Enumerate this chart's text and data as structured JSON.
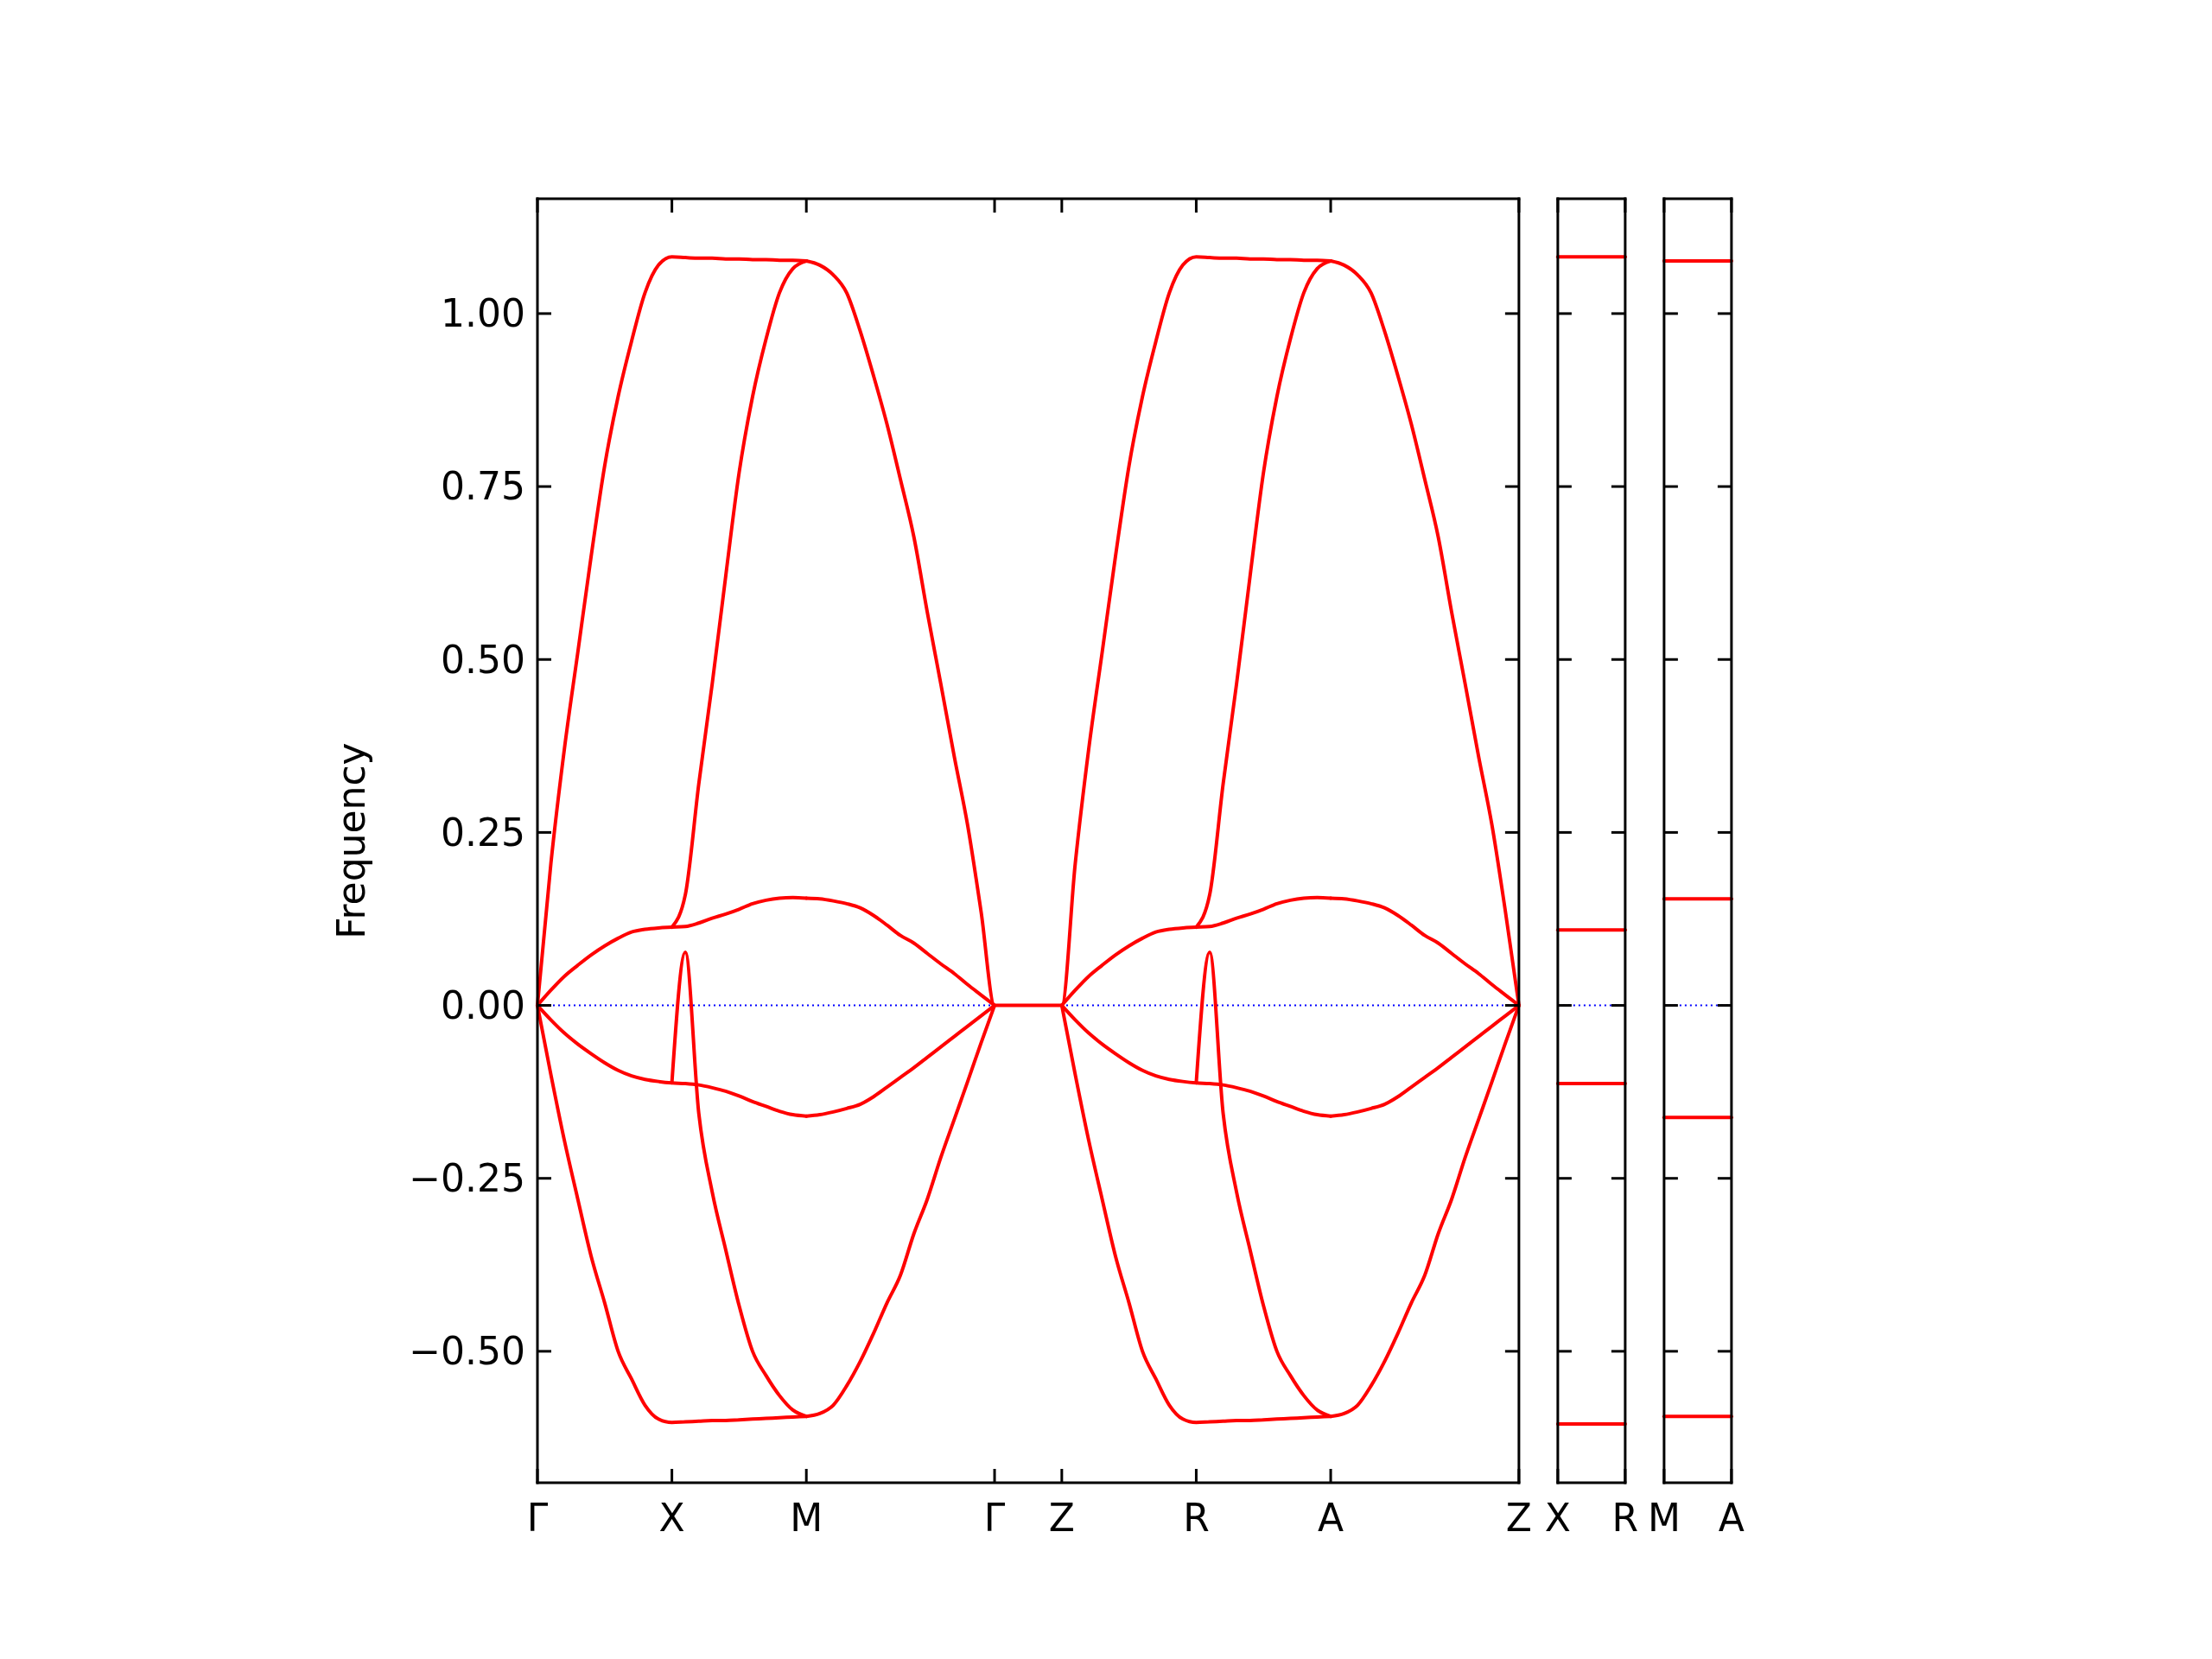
{
  "chart_data": [
    {
      "type": "line",
      "ylabel": "Frequency",
      "ylim": [
        -0.69,
        1.166
      ],
      "categories": [
        "Γ",
        null,
        null,
        null,
        null,
        null,
        null,
        null,
        null,
        null,
        "X",
        null,
        null,
        null,
        null,
        null,
        null,
        null,
        null,
        null,
        "M",
        null,
        null,
        null,
        null,
        null,
        null,
        null,
        null,
        null,
        null,
        null,
        null,
        null,
        "Γ",
        null,
        null,
        null,
        null,
        "Z",
        null,
        null,
        null,
        null,
        null,
        null,
        null,
        null,
        null,
        "R",
        null,
        null,
        null,
        null,
        null,
        null,
        null,
        null,
        null,
        "A",
        null,
        null,
        null,
        null,
        null,
        null,
        null,
        null,
        null,
        null,
        null,
        null,
        null,
        "Z"
      ],
      "yticks": [
        {
          "value": -0.5,
          "label": "−0.50"
        },
        {
          "value": -0.25,
          "label": "−0.25"
        },
        {
          "value": 0,
          "label": "0.00"
        },
        {
          "value": 0.25,
          "label": "0.25"
        },
        {
          "value": 0.5,
          "label": "0.50"
        },
        {
          "value": 0.75,
          "label": "0.75"
        },
        {
          "value": 1.0,
          "label": "1.00"
        }
      ],
      "ref_lines": [
        {
          "axis": "y",
          "value": 0,
          "color": "#0000ff",
          "line_style": "dotted"
        }
      ],
      "series": [
        {
          "color": "#ff0000",
          "values": [
            0,
            0.205,
            0.37,
            0.51,
            0.65,
            0.78,
            0.88,
            0.96,
            1.03,
            1.07,
            1.082,
            1.081,
            1.08,
            1.08,
            1.079,
            1.079,
            1.078,
            1.078,
            1.077,
            1.077,
            1.076,
            null,
            null,
            null,
            null,
            null,
            null,
            null,
            null,
            null,
            null,
            null,
            null,
            null,
            null,
            null,
            null,
            null,
            null,
            null,
            null,
            null,
            null,
            null,
            null,
            null,
            null,
            null,
            null,
            null,
            null,
            null,
            null,
            null,
            null,
            null,
            null,
            null,
            null,
            null,
            null,
            null,
            null,
            null,
            null,
            null,
            null,
            null,
            null,
            null,
            null,
            null,
            null,
            null
          ]
        },
        {
          "color": "#ff0000",
          "values": [
            null,
            null,
            null,
            null,
            null,
            null,
            null,
            null,
            null,
            null,
            null,
            null,
            null,
            null,
            null,
            null,
            null,
            null,
            null,
            null,
            1.076,
            1.07,
            1.056,
            1.03,
            0.975,
            0.91,
            0.84,
            0.76,
            0.677,
            0.568,
            0.465,
            0.36,
            0.26,
            0.135,
            0,
            0,
            0,
            0,
            0,
            0,
            0.205,
            0.37,
            0.51,
            0.65,
            0.78,
            0.88,
            0.96,
            1.03,
            1.07,
            1.082,
            1.081,
            1.08,
            1.08,
            1.079,
            1.079,
            1.078,
            1.078,
            1.077,
            1.077,
            1.076,
            null,
            null,
            null,
            null,
            null,
            null,
            null,
            null,
            null,
            null,
            null,
            null,
            null,
            null
          ]
        },
        {
          "color": "#ff0000",
          "values": [
            null,
            null,
            null,
            null,
            null,
            null,
            null,
            null,
            null,
            null,
            null,
            null,
            null,
            null,
            null,
            null,
            null,
            null,
            null,
            null,
            null,
            null,
            null,
            null,
            null,
            null,
            null,
            null,
            null,
            null,
            null,
            null,
            null,
            null,
            null,
            null,
            null,
            null,
            null,
            null,
            null,
            null,
            null,
            null,
            null,
            null,
            null,
            null,
            null,
            null,
            null,
            null,
            null,
            null,
            null,
            null,
            null,
            null,
            null,
            1.076,
            1.07,
            1.056,
            1.03,
            0.975,
            0.91,
            0.84,
            0.76,
            0.677,
            0.568,
            0.465,
            0.36,
            0.26,
            0.135,
            0
          ]
        },
        {
          "color": "#ff0000",
          "values": [
            null,
            null,
            null,
            null,
            null,
            null,
            null,
            null,
            null,
            null,
            0.113,
            0.16,
            0.32,
            0.465,
            0.62,
            0.77,
            0.88,
            0.963,
            1.03,
            1.065,
            1.076,
            null,
            null,
            null,
            null,
            null,
            null,
            null,
            null,
            null,
            null,
            null,
            null,
            null,
            null,
            null,
            null,
            null,
            null,
            null,
            null,
            null,
            null,
            null,
            null,
            null,
            null,
            null,
            null,
            null,
            null,
            null,
            null,
            null,
            null,
            null,
            null,
            null,
            null,
            null,
            null,
            null,
            null,
            null,
            null,
            null,
            null,
            null,
            null,
            null,
            null,
            null,
            null,
            null
          ]
        },
        {
          "color": "#ff0000",
          "values": [
            null,
            null,
            null,
            null,
            null,
            null,
            null,
            null,
            null,
            null,
            null,
            null,
            null,
            null,
            null,
            null,
            null,
            null,
            null,
            null,
            null,
            null,
            null,
            null,
            null,
            null,
            null,
            null,
            null,
            null,
            null,
            null,
            null,
            null,
            null,
            null,
            null,
            null,
            null,
            null,
            null,
            null,
            null,
            null,
            null,
            null,
            null,
            null,
            null,
            0.113,
            0.16,
            0.32,
            0.465,
            0.62,
            0.77,
            0.88,
            0.963,
            1.03,
            1.065,
            1.076,
            null,
            null,
            null,
            null,
            null,
            null,
            null,
            null,
            null,
            null,
            null,
            null,
            null,
            null
          ]
        },
        {
          "color": "#ff0000",
          "values": [
            0,
            0.022,
            0.042,
            0.058,
            0.073,
            0.086,
            0.097,
            0.106,
            0.11,
            0.112,
            0.113,
            0.114,
            0.119,
            0.126,
            0.132,
            0.139,
            0.147,
            0.152,
            0.155,
            0.156,
            0.155,
            null,
            null,
            null,
            null,
            null,
            null,
            null,
            null,
            null,
            null,
            null,
            null,
            null,
            null,
            null,
            null,
            null,
            null,
            null,
            null,
            null,
            null,
            null,
            null,
            null,
            null,
            null,
            null,
            null,
            null,
            null,
            null,
            null,
            null,
            null,
            null,
            null,
            null,
            null,
            null,
            null,
            null,
            null,
            null,
            null,
            null,
            null,
            null,
            null,
            null,
            null,
            null,
            null
          ]
        },
        {
          "color": "#ff0000",
          "values": [
            null,
            null,
            null,
            null,
            null,
            null,
            null,
            null,
            null,
            null,
            null,
            null,
            null,
            null,
            null,
            null,
            null,
            null,
            null,
            null,
            0.155,
            0.154,
            0.151,
            0.147,
            0.141,
            0.13,
            0.116,
            0.101,
            0.09,
            0.075,
            0.06,
            0.046,
            0.03,
            0.015,
            0,
            null,
            null,
            null,
            null,
            0,
            0.022,
            0.042,
            0.058,
            0.073,
            0.086,
            0.097,
            0.106,
            0.11,
            0.112,
            0.113,
            0.114,
            0.119,
            0.126,
            0.132,
            0.139,
            0.147,
            0.152,
            0.155,
            0.156,
            0.155,
            null,
            null,
            null,
            null,
            null,
            null,
            null,
            null,
            null,
            null,
            null,
            null,
            null,
            null
          ]
        },
        {
          "color": "#ff0000",
          "values": [
            null,
            null,
            null,
            null,
            null,
            null,
            null,
            null,
            null,
            null,
            null,
            null,
            null,
            null,
            null,
            null,
            null,
            null,
            null,
            null,
            null,
            null,
            null,
            null,
            null,
            null,
            null,
            null,
            null,
            null,
            null,
            null,
            null,
            null,
            null,
            null,
            null,
            null,
            null,
            null,
            null,
            null,
            null,
            null,
            null,
            null,
            null,
            null,
            null,
            null,
            null,
            null,
            null,
            null,
            null,
            null,
            null,
            null,
            null,
            0.155,
            0.154,
            0.151,
            0.147,
            0.141,
            0.13,
            0.116,
            0.101,
            0.09,
            0.075,
            0.06,
            0.046,
            0.03,
            0.015,
            0
          ]
        },
        {
          "color": "#ff0000",
          "values": [
            0,
            -0.021,
            -0.04,
            -0.056,
            -0.07,
            -0.083,
            -0.094,
            -0.102,
            -0.107,
            -0.11,
            -0.112,
            -0.113,
            -0.115,
            -0.119,
            -0.124,
            -0.131,
            -0.139,
            -0.146,
            -0.153,
            -0.158,
            -0.16,
            null,
            null,
            null,
            null,
            null,
            null,
            null,
            null,
            null,
            null,
            null,
            null,
            null,
            null,
            null,
            null,
            null,
            null,
            null,
            null,
            null,
            null,
            null,
            null,
            null,
            null,
            null,
            null,
            null,
            null,
            null,
            null,
            null,
            null,
            null,
            null,
            null,
            null,
            null,
            null,
            null,
            null,
            null,
            null,
            null,
            null,
            null,
            null,
            null,
            null,
            null,
            null,
            null
          ]
        },
        {
          "color": "#ff0000",
          "values": [
            null,
            null,
            null,
            null,
            null,
            null,
            null,
            null,
            null,
            null,
            null,
            null,
            null,
            null,
            null,
            null,
            null,
            null,
            null,
            null,
            -0.16,
            -0.158,
            -0.154,
            -0.149,
            -0.143,
            -0.132,
            -0.118,
            -0.104,
            -0.09,
            -0.075,
            -0.06,
            -0.045,
            -0.03,
            -0.015,
            0,
            null,
            null,
            null,
            null,
            0,
            -0.021,
            -0.04,
            -0.056,
            -0.07,
            -0.083,
            -0.094,
            -0.102,
            -0.107,
            -0.11,
            -0.112,
            -0.113,
            -0.115,
            -0.119,
            -0.124,
            -0.131,
            -0.139,
            -0.146,
            -0.153,
            -0.158,
            -0.16,
            null,
            null,
            null,
            null,
            null,
            null,
            null,
            null,
            null,
            null,
            null,
            null,
            null,
            null
          ]
        },
        {
          "color": "#ff0000",
          "values": [
            null,
            null,
            null,
            null,
            null,
            null,
            null,
            null,
            null,
            null,
            null,
            null,
            null,
            null,
            null,
            null,
            null,
            null,
            null,
            null,
            null,
            null,
            null,
            null,
            null,
            null,
            null,
            null,
            null,
            null,
            null,
            null,
            null,
            null,
            null,
            null,
            null,
            null,
            null,
            null,
            null,
            null,
            null,
            null,
            null,
            null,
            null,
            null,
            null,
            null,
            null,
            null,
            null,
            null,
            null,
            null,
            null,
            null,
            null,
            -0.16,
            -0.158,
            -0.154,
            -0.149,
            -0.143,
            -0.132,
            -0.118,
            -0.104,
            -0.09,
            -0.075,
            -0.06,
            -0.045,
            -0.03,
            -0.015,
            0
          ]
        },
        {
          "color": "#ff0000",
          "values": [
            null,
            null,
            null,
            null,
            null,
            null,
            null,
            null,
            null,
            null,
            -0.112,
            0.077,
            -0.156,
            -0.27,
            -0.353,
            -0.434,
            -0.5,
            -0.535,
            -0.564,
            -0.585,
            -0.594,
            null,
            null,
            null,
            null,
            null,
            null,
            null,
            null,
            null,
            null,
            null,
            null,
            null,
            null,
            null,
            null,
            null,
            null,
            null,
            null,
            null,
            null,
            null,
            null,
            null,
            null,
            null,
            null,
            null,
            null,
            null,
            null,
            null,
            null,
            null,
            null,
            null,
            null,
            null,
            null,
            null,
            null,
            null,
            null,
            null,
            null,
            null,
            null,
            null,
            null,
            null,
            null,
            null
          ]
        },
        {
          "color": "#ff0000",
          "values": [
            null,
            null,
            null,
            null,
            null,
            null,
            null,
            null,
            null,
            null,
            null,
            null,
            null,
            null,
            null,
            null,
            null,
            null,
            null,
            null,
            null,
            null,
            null,
            null,
            null,
            null,
            null,
            null,
            null,
            null,
            null,
            null,
            null,
            null,
            null,
            null,
            null,
            null,
            null,
            null,
            null,
            null,
            null,
            null,
            null,
            null,
            null,
            null,
            null,
            -0.112,
            0.077,
            -0.156,
            -0.27,
            -0.353,
            -0.434,
            -0.5,
            -0.535,
            -0.564,
            -0.585,
            -0.594,
            null,
            null,
            null,
            null,
            null,
            null,
            null,
            null,
            null,
            null,
            null,
            null,
            null,
            null
          ]
        },
        {
          "color": "#ff0000",
          "values": [
            0,
            -0.1,
            -0.195,
            -0.28,
            -0.363,
            -0.43,
            -0.5,
            -0.54,
            -0.578,
            -0.598,
            -0.603,
            -0.602,
            -0.601,
            -0.6,
            -0.6,
            -0.599,
            -0.598,
            -0.597,
            -0.596,
            -0.595,
            -0.594,
            null,
            null,
            null,
            null,
            null,
            null,
            null,
            null,
            null,
            null,
            null,
            null,
            null,
            null,
            null,
            null,
            null,
            null,
            null,
            null,
            null,
            null,
            null,
            null,
            null,
            null,
            null,
            null,
            null,
            null,
            null,
            null,
            null,
            null,
            null,
            null,
            null,
            null,
            null,
            null,
            null,
            null,
            null,
            null,
            null,
            null,
            null,
            null,
            null,
            null,
            null,
            null,
            null
          ]
        },
        {
          "color": "#ff0000",
          "values": [
            null,
            null,
            null,
            null,
            null,
            null,
            null,
            null,
            null,
            null,
            null,
            null,
            null,
            null,
            null,
            null,
            null,
            null,
            null,
            null,
            -0.594,
            -0.59,
            -0.578,
            -0.55,
            -0.515,
            -0.474,
            -0.43,
            -0.39,
            -0.33,
            -0.28,
            -0.22,
            -0.165,
            -0.11,
            -0.054,
            0,
            null,
            null,
            null,
            null,
            0,
            -0.1,
            -0.195,
            -0.28,
            -0.363,
            -0.43,
            -0.5,
            -0.54,
            -0.578,
            -0.598,
            -0.603,
            -0.602,
            -0.601,
            -0.6,
            -0.6,
            -0.599,
            -0.598,
            -0.597,
            -0.596,
            -0.595,
            -0.594,
            null,
            null,
            null,
            null,
            null,
            null,
            null,
            null,
            null,
            null,
            null,
            null,
            null,
            null
          ]
        },
        {
          "color": "#ff0000",
          "values": [
            null,
            null,
            null,
            null,
            null,
            null,
            null,
            null,
            null,
            null,
            null,
            null,
            null,
            null,
            null,
            null,
            null,
            null,
            null,
            null,
            null,
            null,
            null,
            null,
            null,
            null,
            null,
            null,
            null,
            null,
            null,
            null,
            null,
            null,
            null,
            null,
            null,
            null,
            null,
            null,
            null,
            null,
            null,
            null,
            null,
            null,
            null,
            null,
            null,
            null,
            null,
            null,
            null,
            null,
            null,
            null,
            null,
            null,
            null,
            -0.594,
            -0.59,
            -0.578,
            -0.55,
            -0.515,
            -0.474,
            -0.43,
            -0.39,
            -0.33,
            -0.28,
            -0.22,
            -0.165,
            -0.11,
            -0.054,
            0
          ]
        }
      ]
    },
    {
      "type": "line",
      "ylim": [
        -0.69,
        1.166
      ],
      "tick_labels": "x",
      "categories": [
        "X",
        "R"
      ],
      "yticks": [
        -0.5,
        -0.25,
        0,
        0.25,
        0.5,
        0.75,
        1.0
      ],
      "ref_lines": [
        {
          "axis": "y",
          "value": 0,
          "color": "#0000ff",
          "line_style": "dotted"
        }
      ],
      "series": [
        {
          "color": "#ff0000",
          "values": [
            1.082,
            1.082
          ]
        },
        {
          "color": "#ff0000",
          "values": [
            0.109,
            0.109
          ]
        },
        {
          "color": "#ff0000",
          "values": [
            -0.113,
            -0.113
          ]
        },
        {
          "color": "#ff0000",
          "values": [
            -0.605,
            -0.605
          ]
        }
      ]
    },
    {
      "type": "line",
      "ylim": [
        -0.69,
        1.166
      ],
      "tick_labels": "x",
      "categories": [
        "M",
        "A"
      ],
      "yticks": [
        -0.5,
        -0.25,
        0,
        0.25,
        0.5,
        0.75,
        1.0
      ],
      "ref_lines": [
        {
          "axis": "y",
          "value": 0,
          "color": "#0000ff",
          "line_style": "dotted"
        }
      ],
      "series": [
        {
          "color": "#ff0000",
          "values": [
            1.076,
            1.076
          ]
        },
        {
          "color": "#ff0000",
          "values": [
            0.154,
            0.154
          ]
        },
        {
          "color": "#ff0000",
          "values": [
            -0.162,
            -0.162
          ]
        },
        {
          "color": "#ff0000",
          "values": [
            -0.594,
            -0.594
          ]
        }
      ]
    }
  ]
}
